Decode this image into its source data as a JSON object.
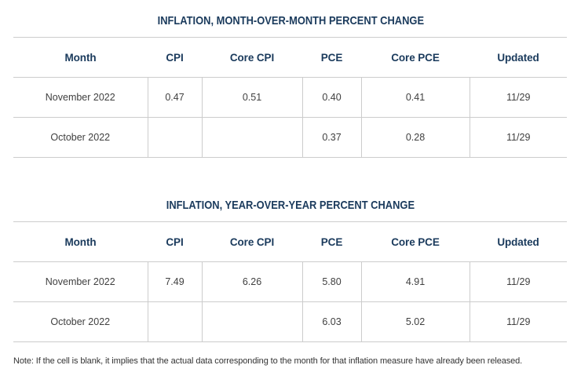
{
  "colors": {
    "heading_navy": "#1a3a5c",
    "data_text": "#404040",
    "border": "#cccccc",
    "background": "#ffffff"
  },
  "tables": [
    {
      "title": "INFLATION, MONTH-OVER-MONTH PERCENT CHANGE",
      "columns": [
        "Month",
        "CPI",
        "Core CPI",
        "PCE",
        "Core PCE",
        "Updated"
      ],
      "rows": [
        [
          "November 2022",
          "0.47",
          "0.51",
          "0.40",
          "0.41",
          "11/29"
        ],
        [
          "October 2022",
          "",
          "",
          "0.37",
          "0.28",
          "11/29"
        ]
      ]
    },
    {
      "title": "INFLATION, YEAR-OVER-YEAR PERCENT CHANGE",
      "columns": [
        "Month",
        "CPI",
        "Core CPI",
        "PCE",
        "Core PCE",
        "Updated"
      ],
      "rows": [
        [
          "November 2022",
          "7.49",
          "6.26",
          "5.80",
          "4.91",
          "11/29"
        ],
        [
          "October 2022",
          "",
          "",
          "6.03",
          "5.02",
          "11/29"
        ]
      ]
    }
  ],
  "note": "Note: If the cell is blank, it implies that the actual data corresponding to the month for that inflation measure have already been released.",
  "chart_data": [
    {
      "type": "table",
      "title": "INFLATION, MONTH-OVER-MONTH PERCENT CHANGE",
      "columns": [
        "Month",
        "CPI",
        "Core CPI",
        "PCE",
        "Core PCE",
        "Updated"
      ],
      "rows": [
        [
          "November 2022",
          0.47,
          0.51,
          0.4,
          0.41,
          "11/29"
        ],
        [
          "October 2022",
          null,
          null,
          0.37,
          0.28,
          "11/29"
        ]
      ],
      "blank_cell_meaning": "actual data already released"
    },
    {
      "type": "table",
      "title": "INFLATION, YEAR-OVER-YEAR PERCENT CHANGE",
      "columns": [
        "Month",
        "CPI",
        "Core CPI",
        "PCE",
        "Core PCE",
        "Updated"
      ],
      "rows": [
        [
          "November 2022",
          7.49,
          6.26,
          5.8,
          4.91,
          "11/29"
        ],
        [
          "October 2022",
          null,
          null,
          6.03,
          5.02,
          "11/29"
        ]
      ],
      "blank_cell_meaning": "actual data already released"
    }
  ]
}
